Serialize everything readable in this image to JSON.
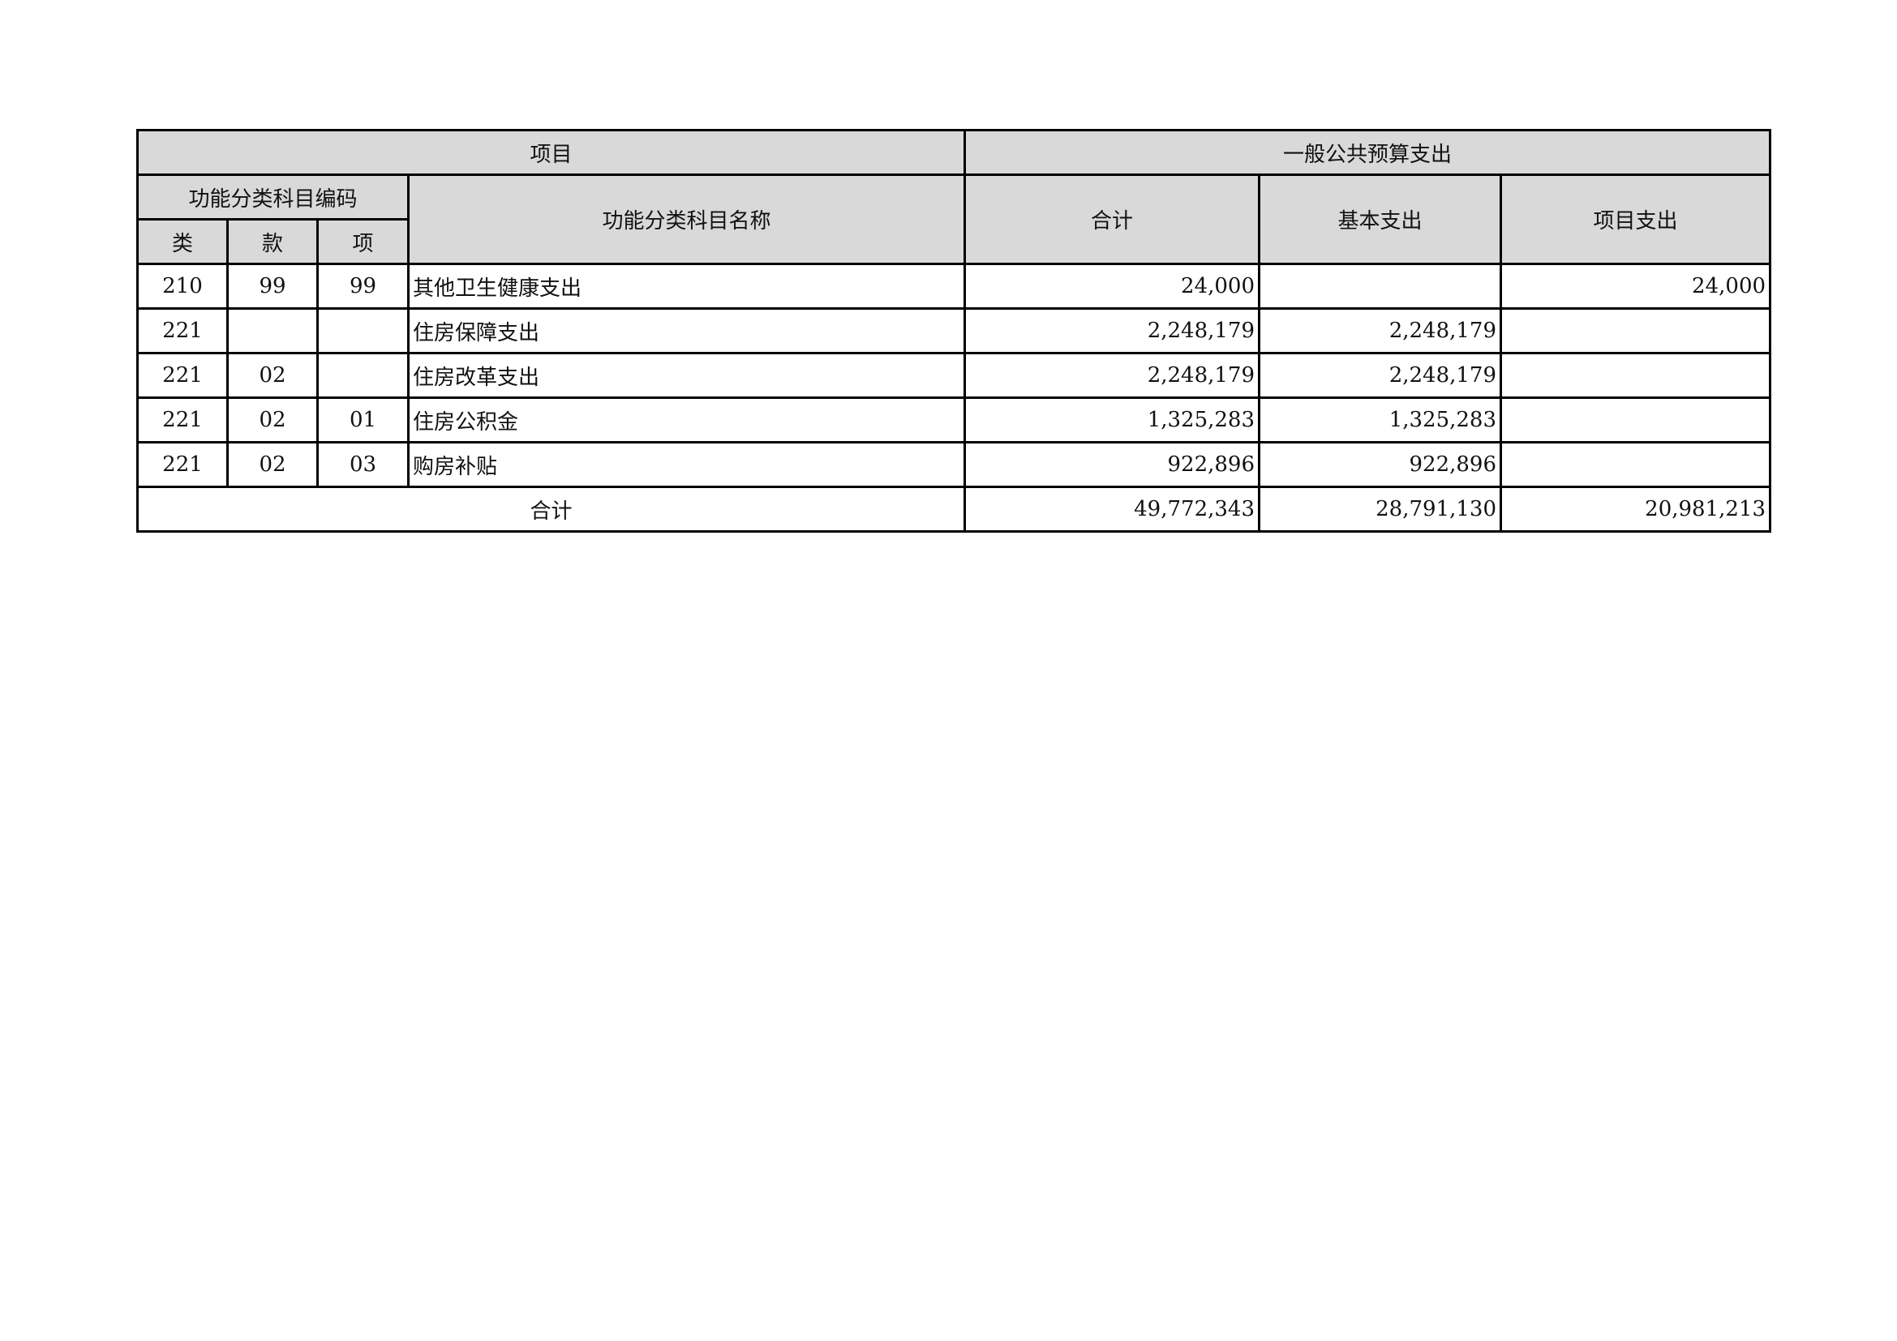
{
  "header": {
    "project": "项目",
    "budget": "一般公共预算支出",
    "code_group": "功能分类科目编码",
    "name": "功能分类科目名称",
    "class": "类",
    "section": "款",
    "item": "项",
    "total": "合计",
    "basic": "基本支出",
    "project_exp": "项目支出"
  },
  "rows": [
    {
      "class": "210",
      "section": "99",
      "item": "99",
      "name": "其他卫生健康支出",
      "total": "24,000",
      "basic": "",
      "project": "24,000"
    },
    {
      "class": "221",
      "section": "",
      "item": "",
      "name": "住房保障支出",
      "total": "2,248,179",
      "basic": "2,248,179",
      "project": ""
    },
    {
      "class": "221",
      "section": "02",
      "item": "",
      "name": "住房改革支出",
      "total": "2,248,179",
      "basic": "2,248,179",
      "project": ""
    },
    {
      "class": "221",
      "section": "02",
      "item": "01",
      "name": "住房公积金",
      "total": "1,325,283",
      "basic": "1,325,283",
      "project": ""
    },
    {
      "class": "221",
      "section": "02",
      "item": "03",
      "name": "购房补贴",
      "total": "922,896",
      "basic": "922,896",
      "project": ""
    }
  ],
  "footer": {
    "label": "合计",
    "total": "49,772,343",
    "basic": "28,791,130",
    "project": "20,981,213"
  }
}
